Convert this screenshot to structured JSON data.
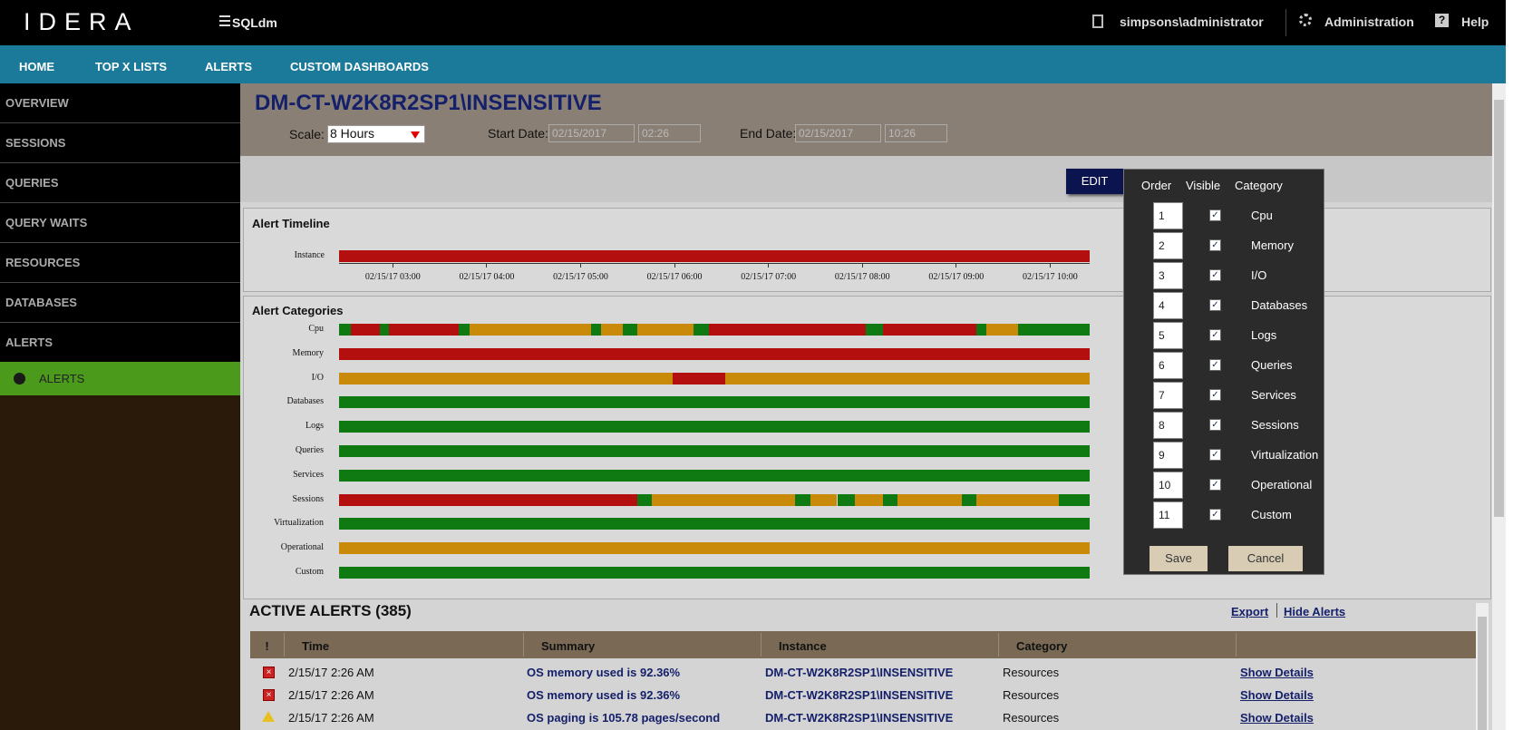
{
  "header": {
    "brand": "IDERA",
    "product": "SQLdm",
    "user": "simpsons\\administrator",
    "admin": "Administration",
    "help": "Help"
  },
  "nav": [
    "HOME",
    "TOP X LISTS",
    "ALERTS",
    "CUSTOM DASHBOARDS"
  ],
  "sidebar": {
    "items": [
      "OVERVIEW",
      "SESSIONS",
      "QUERIES",
      "QUERY WAITS",
      "RESOURCES",
      "DATABASES",
      "ALERTS"
    ],
    "active": "ALERTS"
  },
  "instance": {
    "title": "DM-CT-W2K8R2SP1\\INSENSITIVE",
    "scale_label": "Scale:",
    "scale": "8 Hours",
    "start_label": "Start Date:",
    "start_date": "02/15/2017",
    "start_time": "02:26",
    "end_label": "End Date:",
    "end_date": "02/15/2017",
    "end_time": "10:26"
  },
  "edit_button": "EDIT",
  "timeline": {
    "title": "Alert Timeline",
    "row": "Instance",
    "ticks": [
      "02/15/17 03:00",
      "02/15/17 04:00",
      "02/15/17 05:00",
      "02/15/17 06:00",
      "02/15/17 07:00",
      "02/15/17 08:00",
      "02/15/17 09:00",
      "02/15/17 10:00"
    ]
  },
  "categories": {
    "title": "Alert Categories",
    "rows": [
      "Cpu",
      "Memory",
      "I/O",
      "Databases",
      "Logs",
      "Queries",
      "Services",
      "Sessions",
      "Virtualization",
      "Operational",
      "Custom"
    ]
  },
  "editor": {
    "headers": [
      "Order",
      "Visible",
      "Category"
    ],
    "rows": [
      {
        "order": 1,
        "category": "Cpu"
      },
      {
        "order": 2,
        "category": "Memory"
      },
      {
        "order": 3,
        "category": "I/O"
      },
      {
        "order": 4,
        "category": "Databases"
      },
      {
        "order": 5,
        "category": "Logs"
      },
      {
        "order": 6,
        "category": "Queries"
      },
      {
        "order": 7,
        "category": "Services"
      },
      {
        "order": 8,
        "category": "Sessions"
      },
      {
        "order": 9,
        "category": "Virtualization"
      },
      {
        "order": 10,
        "category": "Operational"
      },
      {
        "order": 11,
        "category": "Custom"
      }
    ],
    "save": "Save",
    "cancel": "Cancel"
  },
  "alerts": {
    "title": "ACTIVE ALERTS (385)",
    "export": "Export",
    "hide": "Hide Alerts",
    "columns": [
      "!",
      "Time",
      "Summary",
      "Instance",
      "Category"
    ],
    "rows": [
      {
        "time": "2/15/17 2:26 AM",
        "summary": "OS memory used is 92.36%",
        "instance": "DM-CT-W2K8R2SP1\\INSENSITIVE",
        "category": "Resources",
        "details": "Show Details"
      },
      {
        "time": "2/15/17 2:26 AM",
        "summary": "OS memory used is 92.36%",
        "instance": "DM-CT-W2K8R2SP1\\INSENSITIVE",
        "category": "Resources",
        "details": "Show Details"
      },
      {
        "time": "2/15/17 2:26 AM",
        "summary": "OS paging is 105.78 pages/second",
        "instance": "DM-CT-W2K8R2SP1\\INSENSITIVE",
        "category": "Resources",
        "details": "Show Details"
      }
    ]
  }
}
